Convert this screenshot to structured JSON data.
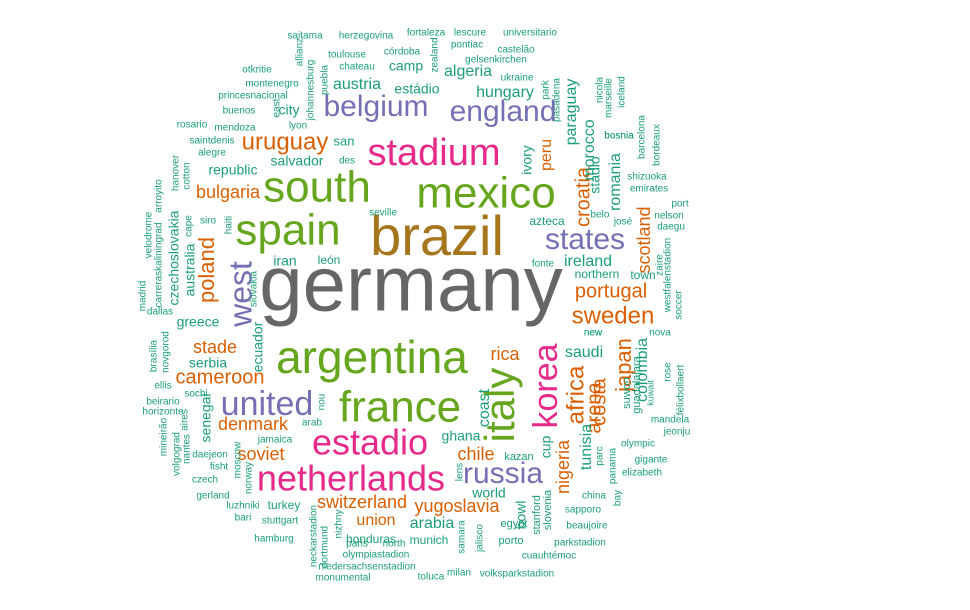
{
  "palette": {
    "gray": "#666666",
    "gold": "#a6761d",
    "green": "#66a61e",
    "magenta": "#e7298a",
    "purple": "#7570b3",
    "orange": "#d95f02",
    "teal": "#1b9e77"
  },
  "words": [
    {
      "text": "germany",
      "color": "gray"
    },
    {
      "text": "brazil",
      "color": "gold"
    },
    {
      "text": "mexico",
      "color": "green"
    },
    {
      "text": "south",
      "color": "green"
    },
    {
      "text": "argentina",
      "color": "green"
    },
    {
      "text": "france",
      "color": "green"
    },
    {
      "text": "spain",
      "color": "green"
    },
    {
      "text": "stadium",
      "color": "magenta"
    },
    {
      "text": "italy",
      "color": "green"
    },
    {
      "text": "estadio",
      "color": "magenta"
    },
    {
      "text": "netherlands",
      "color": "magenta"
    },
    {
      "text": "korea",
      "color": "magenta"
    },
    {
      "text": "united",
      "color": "purple"
    },
    {
      "text": "belgium",
      "color": "purple"
    },
    {
      "text": "england",
      "color": "purple"
    },
    {
      "text": "states",
      "color": "purple"
    },
    {
      "text": "russia",
      "color": "purple"
    },
    {
      "text": "west",
      "color": "purple"
    },
    {
      "text": "uruguay",
      "color": "orange"
    },
    {
      "text": "sweden",
      "color": "orange"
    },
    {
      "text": "portugal",
      "color": "orange"
    },
    {
      "text": "africa",
      "color": "orange"
    },
    {
      "text": "poland",
      "color": "orange"
    },
    {
      "text": "croatia",
      "color": "orange"
    },
    {
      "text": "cameroon",
      "color": "orange"
    },
    {
      "text": "bulgaria",
      "color": "orange"
    },
    {
      "text": "switzerland",
      "color": "orange"
    },
    {
      "text": "yugoslavia",
      "color": "orange"
    },
    {
      "text": "denmark",
      "color": "orange"
    },
    {
      "text": "stade",
      "color": "orange"
    },
    {
      "text": "scotland",
      "color": "orange"
    },
    {
      "text": "japan",
      "color": "orange"
    },
    {
      "text": "costa",
      "color": "orange"
    },
    {
      "text": "arena",
      "color": "orange"
    },
    {
      "text": "nigeria",
      "color": "orange"
    },
    {
      "text": "soviet",
      "color": "orange"
    },
    {
      "text": "chile",
      "color": "orange"
    },
    {
      "text": "union",
      "color": "orange"
    },
    {
      "text": "rica",
      "color": "orange"
    },
    {
      "text": "peru",
      "color": "orange"
    },
    {
      "text": "colombia",
      "color": "teal"
    },
    {
      "text": "tunisia",
      "color": "teal"
    },
    {
      "text": "paraguay",
      "color": "teal"
    },
    {
      "text": "morocco",
      "color": "teal"
    },
    {
      "text": "romania",
      "color": "teal"
    },
    {
      "text": "hungary",
      "color": "teal"
    },
    {
      "text": "austria",
      "color": "teal"
    },
    {
      "text": "algeria",
      "color": "teal"
    },
    {
      "text": "ireland",
      "color": "teal"
    },
    {
      "text": "saudi",
      "color": "teal"
    },
    {
      "text": "arabia",
      "color": "teal"
    },
    {
      "text": "coast",
      "color": "teal"
    },
    {
      "text": "ghana",
      "color": "teal"
    },
    {
      "text": "australia",
      "color": "teal"
    },
    {
      "text": "czechoslovakia",
      "color": "teal"
    },
    {
      "text": "republic",
      "color": "teal"
    },
    {
      "text": "ecuador",
      "color": "teal"
    },
    {
      "text": "greece",
      "color": "teal"
    },
    {
      "text": "serbia",
      "color": "teal"
    },
    {
      "text": "senegal",
      "color": "teal"
    },
    {
      "text": "iran",
      "color": "teal"
    },
    {
      "text": "salvador",
      "color": "teal"
    },
    {
      "text": "city",
      "color": "teal"
    },
    {
      "text": "estádio",
      "color": "teal"
    },
    {
      "text": "camp",
      "color": "teal"
    },
    {
      "text": "world",
      "color": "teal"
    },
    {
      "text": "cup",
      "color": "teal"
    },
    {
      "text": "bowl",
      "color": "teal"
    },
    {
      "text": "honduras",
      "color": "teal"
    },
    {
      "text": "turkey",
      "color": "teal"
    },
    {
      "text": "munich",
      "color": "teal"
    },
    {
      "text": "stadio",
      "color": "teal"
    },
    {
      "text": "ivory",
      "color": "teal"
    },
    {
      "text": "azteca",
      "color": "teal"
    },
    {
      "text": "san",
      "color": "teal"
    },
    {
      "text": "león",
      "color": "teal"
    },
    {
      "text": "northern",
      "color": "teal"
    },
    {
      "text": "town",
      "color": "teal"
    },
    {
      "text": "kazan",
      "color": "teal"
    },
    {
      "text": "egypt",
      "color": "teal"
    },
    {
      "text": "porto",
      "color": "teal"
    },
    {
      "text": "stanford",
      "color": "teal"
    },
    {
      "text": "slovenia",
      "color": "teal"
    },
    {
      "text": "guadalajara",
      "color": "teal"
    },
    {
      "text": "suwon",
      "color": "teal"
    },
    {
      "text": "kuwait",
      "color": "teal"
    },
    {
      "text": "mandela",
      "color": "teal"
    },
    {
      "text": "jeonju",
      "color": "teal"
    },
    {
      "text": "olympic",
      "color": "teal"
    },
    {
      "text": "gigante",
      "color": "teal"
    },
    {
      "text": "elizabeth",
      "color": "teal"
    },
    {
      "text": "panama",
      "color": "teal"
    },
    {
      "text": "parc",
      "color": "teal"
    },
    {
      "text": "china",
      "color": "teal"
    },
    {
      "text": "bay",
      "color": "teal"
    },
    {
      "text": "sapporo",
      "color": "teal"
    },
    {
      "text": "beaujoire",
      "color": "teal"
    },
    {
      "text": "parkstadion",
      "color": "teal"
    },
    {
      "text": "cuauhtémoc",
      "color": "teal"
    },
    {
      "text": "volksparkstadion",
      "color": "teal"
    },
    {
      "text": "milan",
      "color": "teal"
    },
    {
      "text": "toluca",
      "color": "teal"
    },
    {
      "text": "niedersachsenstadion",
      "color": "teal"
    },
    {
      "text": "monumental",
      "color": "teal"
    },
    {
      "text": "olympiastadion",
      "color": "teal"
    },
    {
      "text": "paris",
      "color": "teal"
    },
    {
      "text": "north",
      "color": "teal"
    },
    {
      "text": "neckarstadion",
      "color": "teal"
    },
    {
      "text": "dortmund",
      "color": "teal"
    },
    {
      "text": "nizhny",
      "color": "teal"
    },
    {
      "text": "samara",
      "color": "teal"
    },
    {
      "text": "jalisco",
      "color": "teal"
    },
    {
      "text": "lens",
      "color": "teal"
    },
    {
      "text": "stuttgart",
      "color": "teal"
    },
    {
      "text": "bari",
      "color": "teal"
    },
    {
      "text": "luzhniki",
      "color": "teal"
    },
    {
      "text": "hamburg",
      "color": "teal"
    },
    {
      "text": "gerland",
      "color": "teal"
    },
    {
      "text": "czech",
      "color": "teal"
    },
    {
      "text": "fisht",
      "color": "teal"
    },
    {
      "text": "daejeon",
      "color": "teal"
    },
    {
      "text": "jamaica",
      "color": "teal"
    },
    {
      "text": "arab",
      "color": "teal"
    },
    {
      "text": "nou",
      "color": "teal"
    },
    {
      "text": "moscow",
      "color": "teal"
    },
    {
      "text": "norway",
      "color": "teal"
    },
    {
      "text": "nantes",
      "color": "teal"
    },
    {
      "text": "volgograd",
      "color": "teal"
    },
    {
      "text": "mineirão",
      "color": "teal"
    },
    {
      "text": "aires",
      "color": "teal"
    },
    {
      "text": "horizonte",
      "color": "teal"
    },
    {
      "text": "beirario",
      "color": "teal"
    },
    {
      "text": "sochi",
      "color": "teal"
    },
    {
      "text": "ellis",
      "color": "teal"
    },
    {
      "text": "brasília",
      "color": "teal"
    },
    {
      "text": "novgorod",
      "color": "teal"
    },
    {
      "text": "dallas",
      "color": "teal"
    },
    {
      "text": "madrid",
      "color": "teal"
    },
    {
      "text": "carreraskaliningrad",
      "color": "teal"
    },
    {
      "text": "slovakia",
      "color": "teal"
    },
    {
      "text": "velodrome",
      "color": "teal"
    },
    {
      "text": "arroyito",
      "color": "teal"
    },
    {
      "text": "hanover",
      "color": "teal"
    },
    {
      "text": "cotton",
      "color": "teal"
    },
    {
      "text": "cape",
      "color": "teal"
    },
    {
      "text": "siro",
      "color": "teal"
    },
    {
      "text": "haiti",
      "color": "teal"
    },
    {
      "text": "saintdenis",
      "color": "teal"
    },
    {
      "text": "alegre",
      "color": "teal"
    },
    {
      "text": "rosario",
      "color": "teal"
    },
    {
      "text": "mendoza",
      "color": "teal"
    },
    {
      "text": "buenos",
      "color": "teal"
    },
    {
      "text": "princesnacional",
      "color": "teal"
    },
    {
      "text": "montenegro",
      "color": "teal"
    },
    {
      "text": "otkritie",
      "color": "teal"
    },
    {
      "text": "east",
      "color": "teal"
    },
    {
      "text": "lyon",
      "color": "teal"
    },
    {
      "text": "johannesburg",
      "color": "teal"
    },
    {
      "text": "allianz",
      "color": "teal"
    },
    {
      "text": "puebla",
      "color": "teal"
    },
    {
      "text": "saitama",
      "color": "teal"
    },
    {
      "text": "herzegovina",
      "color": "teal"
    },
    {
      "text": "toulouse",
      "color": "teal"
    },
    {
      "text": "córdoba",
      "color": "teal"
    },
    {
      "text": "chateau",
      "color": "teal"
    },
    {
      "text": "fortaleza",
      "color": "teal"
    },
    {
      "text": "bosnia",
      "color": "teal"
    },
    {
      "text": "zealand",
      "color": "teal"
    },
    {
      "text": "new",
      "color": "teal"
    },
    {
      "text": "lescure",
      "color": "teal"
    },
    {
      "text": "pontiac",
      "color": "teal"
    },
    {
      "text": "universitario",
      "color": "teal"
    },
    {
      "text": "castelão",
      "color": "teal"
    },
    {
      "text": "gelsenkirchen",
      "color": "teal"
    },
    {
      "text": "ukraine",
      "color": "teal"
    },
    {
      "text": "park",
      "color": "teal"
    },
    {
      "text": "pasadena",
      "color": "teal"
    },
    {
      "text": "nicola",
      "color": "teal"
    },
    {
      "text": "marseille",
      "color": "teal"
    },
    {
      "text": "iceland",
      "color": "teal"
    },
    {
      "text": "bosnia",
      "color": "teal"
    },
    {
      "text": "barcelona",
      "color": "teal"
    },
    {
      "text": "bordeaux",
      "color": "teal"
    },
    {
      "text": "shizuoka",
      "color": "teal"
    },
    {
      "text": "emirates",
      "color": "teal"
    },
    {
      "text": "port",
      "color": "teal"
    },
    {
      "text": "nelson",
      "color": "teal"
    },
    {
      "text": "daegu",
      "color": "teal"
    },
    {
      "text": "westfalenstadion",
      "color": "teal"
    },
    {
      "text": "zaire",
      "color": "teal"
    },
    {
      "text": "soccer",
      "color": "teal"
    },
    {
      "text": "nova",
      "color": "teal"
    },
    {
      "text": "félixbollaert",
      "color": "teal"
    },
    {
      "text": "rose",
      "color": "teal"
    },
    {
      "text": "belo",
      "color": "teal"
    },
    {
      "text": "josé",
      "color": "teal"
    },
    {
      "text": "fonte",
      "color": "teal"
    },
    {
      "text": "seville",
      "color": "teal"
    },
    {
      "text": "des",
      "color": "teal"
    },
    {
      "text": "new",
      "color": "teal"
    }
  ]
}
